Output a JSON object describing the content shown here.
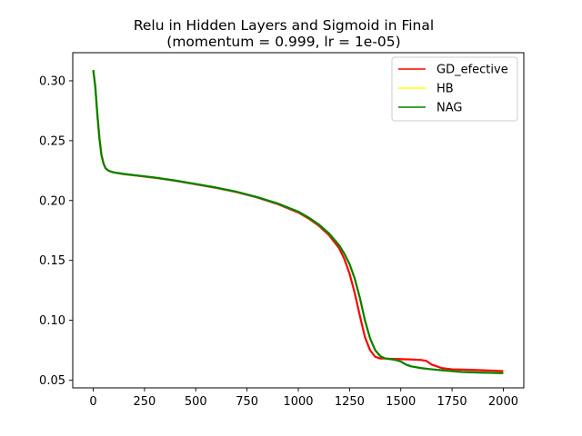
{
  "chart_data": {
    "type": "line",
    "title": "Relu in Hidden Layers and Sigmoid in Final",
    "subtitle": "(momentum = 0.999, lr = 1e-05)",
    "xlabel": "",
    "ylabel": "",
    "xlim": [
      -100,
      2100
    ],
    "ylim": [
      0.0435,
      0.3235
    ],
    "xticks": [
      0,
      250,
      500,
      750,
      1000,
      1250,
      1500,
      1750,
      2000
    ],
    "xtick_labels": [
      "0",
      "250",
      "500",
      "750",
      "1000",
      "1250",
      "1500",
      "1750",
      "2000"
    ],
    "yticks": [
      0.05,
      0.1,
      0.15,
      0.2,
      0.25,
      0.3
    ],
    "ytick_labels": [
      "0.05",
      "0.10",
      "0.15",
      "0.20",
      "0.25",
      "0.30"
    ],
    "grid": false,
    "legend_position": "top-right",
    "series": [
      {
        "name": "GD_efective",
        "color": "#ff0000",
        "x": [
          0,
          10,
          20,
          30,
          40,
          50,
          60,
          70,
          80,
          100,
          150,
          200,
          300,
          400,
          500,
          600,
          700,
          800,
          900,
          1000,
          1050,
          1100,
          1150,
          1200,
          1225,
          1250,
          1275,
          1300,
          1325,
          1350,
          1375,
          1400,
          1425,
          1450,
          1500,
          1550,
          1600,
          1625,
          1650,
          1700,
          1750,
          1800,
          1900,
          2000
        ],
        "y": [
          0.309,
          0.295,
          0.272,
          0.252,
          0.238,
          0.231,
          0.227,
          0.2255,
          0.2245,
          0.2235,
          0.222,
          0.221,
          0.219,
          0.2165,
          0.2135,
          0.2105,
          0.207,
          0.2025,
          0.197,
          0.19,
          0.185,
          0.179,
          0.171,
          0.16,
          0.151,
          0.139,
          0.123,
          0.104,
          0.086,
          0.075,
          0.0695,
          0.068,
          0.068,
          0.0678,
          0.0675,
          0.0672,
          0.0668,
          0.066,
          0.063,
          0.06,
          0.059,
          0.0588,
          0.0582,
          0.0575
        ]
      },
      {
        "name": "HB",
        "color": "#ffff00",
        "x": [
          0,
          10,
          20,
          30,
          40,
          50,
          60,
          70,
          80,
          100,
          150,
          200,
          300,
          400,
          500,
          600,
          700,
          800,
          900,
          1000,
          1050,
          1100,
          1150,
          1200,
          1225,
          1250,
          1275,
          1300,
          1325,
          1350,
          1375,
          1400,
          1425,
          1450,
          1475,
          1500,
          1525,
          1550,
          1600,
          1650,
          1700,
          1750,
          1800,
          1900,
          2000
        ],
        "y": [
          0.309,
          0.295,
          0.272,
          0.252,
          0.238,
          0.231,
          0.227,
          0.2255,
          0.2245,
          0.2235,
          0.2222,
          0.2212,
          0.2192,
          0.2167,
          0.2138,
          0.2108,
          0.2073,
          0.2028,
          0.1975,
          0.1907,
          0.1858,
          0.18,
          0.1725,
          0.1625,
          0.1555,
          0.147,
          0.135,
          0.119,
          0.1,
          0.085,
          0.075,
          0.07,
          0.068,
          0.0675,
          0.0668,
          0.0655,
          0.063,
          0.0615,
          0.06,
          0.059,
          0.0582,
          0.0575,
          0.0568,
          0.0562,
          0.0558
        ]
      },
      {
        "name": "NAG",
        "color": "#008000",
        "x": [
          0,
          10,
          20,
          30,
          40,
          50,
          60,
          70,
          80,
          100,
          150,
          200,
          300,
          400,
          500,
          600,
          700,
          800,
          900,
          1000,
          1050,
          1100,
          1150,
          1200,
          1225,
          1250,
          1275,
          1300,
          1325,
          1350,
          1375,
          1400,
          1425,
          1450,
          1475,
          1500,
          1525,
          1550,
          1600,
          1650,
          1700,
          1750,
          1800,
          1900,
          2000
        ],
        "y": [
          0.309,
          0.295,
          0.272,
          0.252,
          0.238,
          0.231,
          0.227,
          0.2255,
          0.2245,
          0.2235,
          0.2222,
          0.2212,
          0.2192,
          0.2167,
          0.2138,
          0.2108,
          0.2073,
          0.2028,
          0.1975,
          0.1907,
          0.1858,
          0.18,
          0.1725,
          0.1625,
          0.1555,
          0.147,
          0.135,
          0.119,
          0.1,
          0.085,
          0.075,
          0.07,
          0.068,
          0.0675,
          0.0668,
          0.0655,
          0.063,
          0.0615,
          0.06,
          0.059,
          0.0582,
          0.0575,
          0.0568,
          0.0562,
          0.0558
        ]
      }
    ]
  }
}
